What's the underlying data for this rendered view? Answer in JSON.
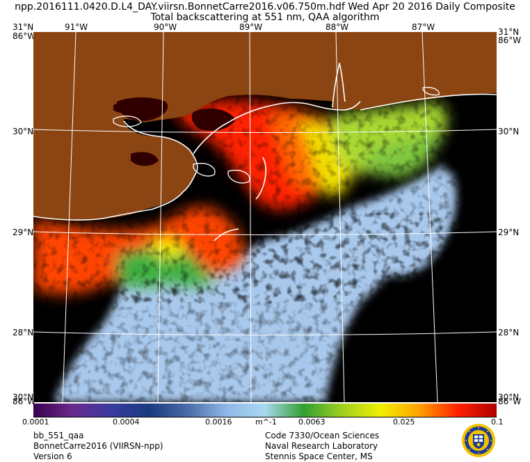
{
  "header": {
    "title_line1": "npp.2016111.0420.D.L4_DAY.viirsn.BonnetCarre2016.v06.750m.hdf   Wed Apr 20 2016 Daily Composite",
    "title_line2": "Total backscattering at 551 nm, QAA algorithm"
  },
  "map": {
    "top_lon_labels": [
      "31°N",
      "91°W",
      "90°W",
      "89°W",
      "88°W",
      "87°W",
      "31°N"
    ],
    "left_lat_labels": [
      "30°N",
      "29°N",
      "28°N"
    ],
    "right_lat_labels": [
      "30°N",
      "29°N",
      "28°N"
    ],
    "corner_top_left_over": "86°W",
    "corner_top_right_over": "86°W",
    "corner_bottom_left": "30°N",
    "corner_bottom_left_over": "86°W",
    "corner_bottom_right": "30°N",
    "corner_bottom_right_over": "86°W",
    "colors": {
      "land": "#8B4513",
      "no_data": "#000000",
      "coast": "#ffffff",
      "grid": "#ffffff"
    }
  },
  "colorbar": {
    "ticks": [
      "0.0001",
      "0.0004",
      "0.0016",
      "m^-1",
      "0.0063",
      "0.025",
      "0.1"
    ],
    "stops": [
      "#3a0050",
      "#6a2a8a",
      "#3a3aa0",
      "#1a3a80",
      "#4a6aa8",
      "#8fb8e8",
      "#a8d8f0",
      "#30a030",
      "#a0d020",
      "#f0f000",
      "#ffa000",
      "#ff2000",
      "#b00000"
    ]
  },
  "footer": {
    "left": [
      "bb_551_qaa",
      "BonnetCarre2016 (VIIRSN-npp)",
      "Version 6"
    ],
    "right": [
      "Code 7330/Ocean Sciences",
      "Naval Research Laboratory",
      "Stennis Space Center, MS"
    ],
    "logo_icon": "nrl-seal-icon"
  }
}
